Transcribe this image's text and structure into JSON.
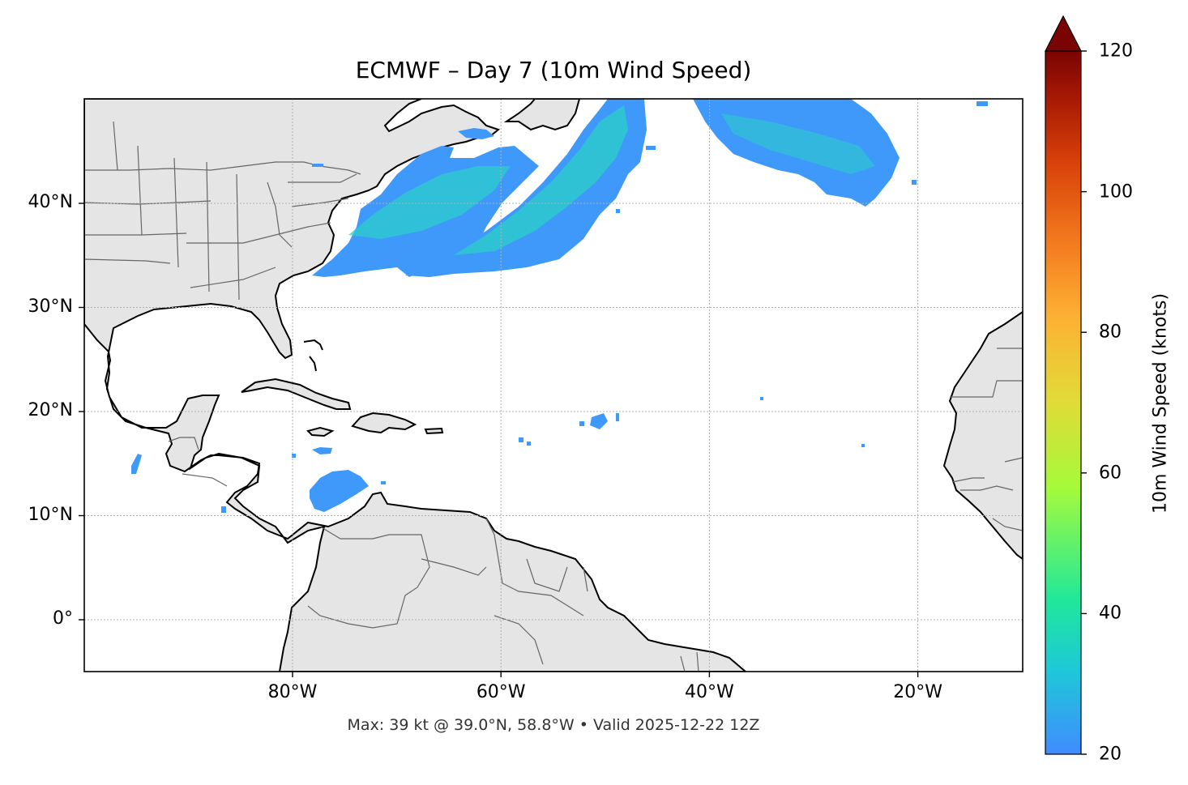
{
  "title": "ECMWF – Day 7 (10m Wind Speed)",
  "footer": "Max: 39 kt @ 39.0°N, 58.8°W • Valid 2025-12-22 12Z",
  "lat_labels": [
    {
      "value": 40,
      "text": "40°N"
    },
    {
      "value": 30,
      "text": "30°N"
    },
    {
      "value": 20,
      "text": "20°N"
    },
    {
      "value": 10,
      "text": "10°N"
    },
    {
      "value": 0,
      "text": "0°"
    }
  ],
  "lon_labels": [
    {
      "value": -80,
      "text": "80°W"
    },
    {
      "value": -60,
      "text": "60°W"
    },
    {
      "value": -40,
      "text": "40°W"
    },
    {
      "value": -20,
      "text": "20°W"
    }
  ],
  "colorbar": {
    "label": "10m Wind Speed (knots)",
    "min": 20,
    "max": 120,
    "extend": "max",
    "ticks": [
      {
        "value": 120,
        "text": "120"
      },
      {
        "value": 100,
        "text": "100"
      },
      {
        "value": 80,
        "text": "80"
      },
      {
        "value": 60,
        "text": "60"
      },
      {
        "value": 40,
        "text": "40"
      },
      {
        "value": 20,
        "text": "20"
      }
    ],
    "colors": [
      "#3f8cff",
      "#1ec8d8",
      "#20e89a",
      "#a6fa3a",
      "#e0dc38",
      "#fdb133",
      "#f47e1f",
      "#d9420a",
      "#a91a04",
      "#7a0403"
    ]
  },
  "colors": {
    "land": "#e5e5e5",
    "ocean": "#ffffff",
    "coast": "#000000",
    "borders": "#666666",
    "wind_low": "#3f99fb",
    "wind_mid": "#2bd0c8"
  }
}
